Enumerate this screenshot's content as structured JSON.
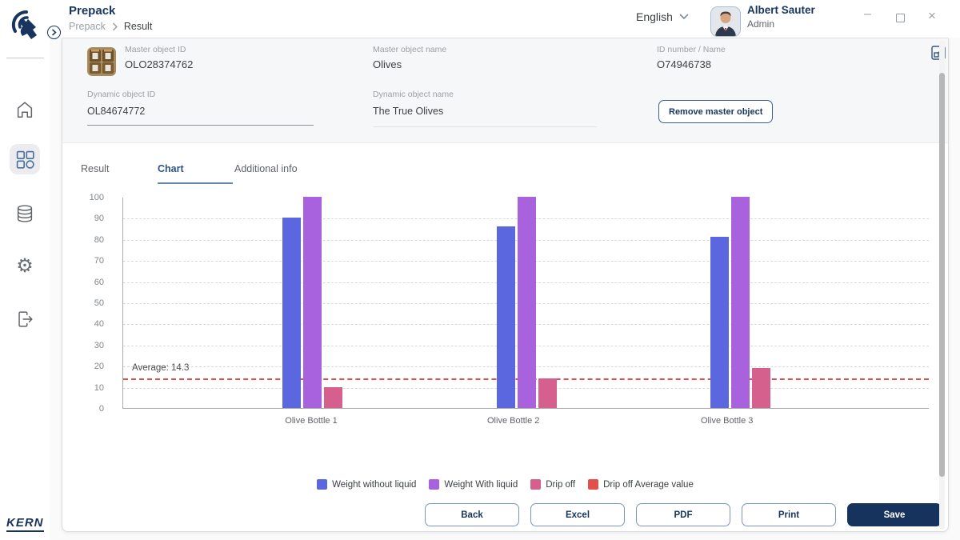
{
  "header": {
    "app_title": "Prepack",
    "breadcrumb": [
      "Prepack",
      "Result"
    ],
    "language": "English",
    "user_name": "Albert Sauter",
    "user_role": "Admin",
    "window_icons": {
      "minimize": "–",
      "close": "×"
    }
  },
  "form": {
    "master_object_id_label": "Master object ID",
    "master_object_id": "OLO28374762",
    "master_object_name_label": "Master object name",
    "master_object_name": "Olives",
    "id_number_label": "ID number / Name",
    "id_number": "O74946738",
    "dynamic_object_id_label": "Dynamic object ID",
    "dynamic_object_id": "OL84674772",
    "dynamic_object_name_label": "Dynamic object name",
    "dynamic_object_name": "The True Olives",
    "remove_button_label": "Remove master object"
  },
  "tabs": [
    {
      "label": "Result",
      "active": false
    },
    {
      "label": "Chart",
      "active": true
    },
    {
      "label": "Additional info",
      "active": false
    }
  ],
  "chart_data": {
    "type": "bar",
    "categories": [
      "Olive Bottle 1",
      "Olive Bottle 2",
      "Olive Bottle 3"
    ],
    "series": [
      {
        "name": "Weight without liquid",
        "color": "#5b67de",
        "values": [
          90,
          86,
          81
        ]
      },
      {
        "name": "Weight With liquid",
        "color": "#a862de",
        "values": [
          100,
          100,
          100
        ]
      },
      {
        "name": "Drip off",
        "color": "#d55f8d",
        "values": [
          10,
          14,
          19
        ]
      }
    ],
    "average_line": {
      "label": "Average: 14.3",
      "value": 14.3,
      "color": "#e2504c",
      "legend_label": "Drip off Average value"
    },
    "title": "",
    "xlabel": "",
    "ylabel": "",
    "ylim": [
      0,
      100
    ],
    "yticks": [
      0,
      10,
      20,
      30,
      40,
      50,
      60,
      70,
      80,
      90,
      100
    ],
    "grid": "dashed horizontal",
    "legend_position": "bottom"
  },
  "footer": {
    "buttons": [
      {
        "label": "Back",
        "variant": "outline"
      },
      {
        "label": "Excel",
        "variant": "outline"
      },
      {
        "label": "PDF",
        "variant": "outline"
      },
      {
        "label": "Print",
        "variant": "outline"
      },
      {
        "label": "Save",
        "variant": "primary"
      }
    ]
  },
  "brand": "KERN",
  "colors": {
    "navy": "#16335e",
    "tab_active": "#2b5188",
    "average_red": "#e2504c"
  }
}
